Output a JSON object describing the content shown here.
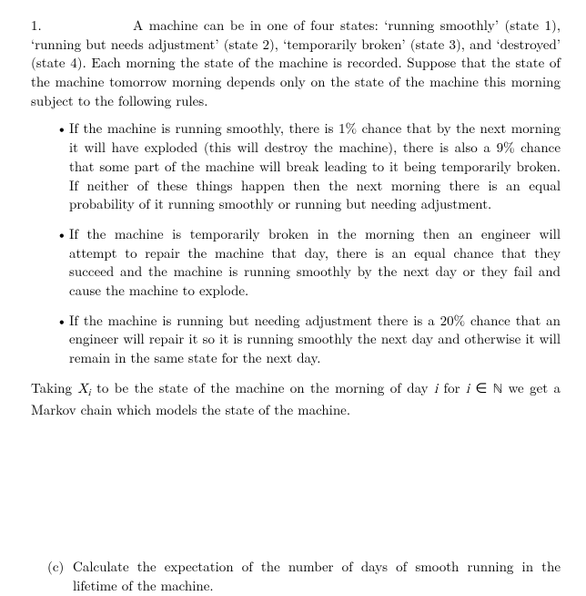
{
  "text_color": "#000000",
  "background_color": "#ffffff",
  "font_size_pt": 11,
  "problem_number": "1.",
  "intro_text": "A machine can be in one of four states: ‘running smoothly’ (state 1), ‘running but needs adjustment’ (state 2), ‘temporarily broken’ (state 3), and ‘destroyed’ (state 4). Each morning the state of the machine is recorded. Suppose that the state of the machine tomorrow morning depends only on the state of the machine this morning subject to the following rules.",
  "bullets": [
    "If the machine is running smoothly, there is 1% chance that by the next morning it will have exploded (this will destroy the machine), there is also a 9% chance that some part of the machine will break leading to it being temporarily broken. If neither of these things happen then the next morning there is an equal probability of it running smoothly or running but needing adjustment.",
    "If the machine is temporarily broken in the morning then an engineer will attempt to repair the machine that day, there is an equal chance that they succeed and the machine is running smoothly by the next day or they fail and cause the machine to explode.",
    "If the machine is running but needing adjustment there is a 20% chance that an engineer will repair it so it is running smoothly the next day and otherwise it will remain in the same state for the next day."
  ],
  "closing_prefix": "Taking ",
  "closing_var": "X",
  "closing_sub": "i",
  "closing_mid1": " to be the state of the machine on the morning of day ",
  "closing_i": "i",
  "closing_mid2": " for ",
  "closing_in": " ∈ ",
  "closing_N": "ℕ",
  "closing_suffix": " we get a Markov chain which models the state of the machine.",
  "subpart_label": "(c)",
  "subpart_text": "Calculate the expectation of the number of days of smooth running in the lifetime of the machine."
}
